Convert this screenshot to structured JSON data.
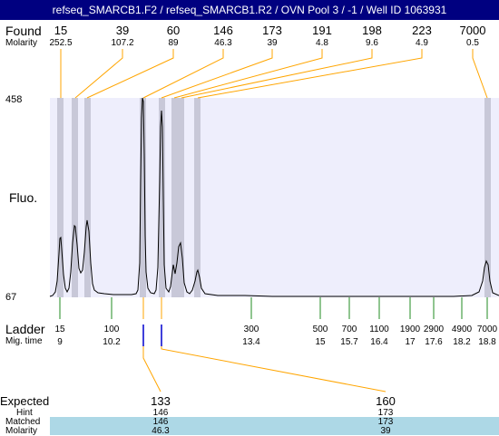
{
  "title": "refseq_SMARCB1.F2 / refseq_SMARCB1.R2 / OVN Pool 3 / -1 / Well ID 1063931",
  "labels": {
    "found": "Found",
    "molarity": "Molarity",
    "fluo": "Fluo.",
    "ladder": "Ladder",
    "mig_time": "Mig. time",
    "expected": "Expected",
    "hint": "Hint",
    "matched": "Matched",
    "molarity2": "Molarity"
  },
  "y_axis": {
    "top": "458",
    "bottom": "67"
  },
  "found_peaks": [
    {
      "found": "15",
      "molarity": "252.5"
    },
    {
      "found": "39",
      "molarity": "107.2"
    },
    {
      "found": "60",
      "molarity": "89"
    },
    {
      "found": "146",
      "molarity": "46.3"
    },
    {
      "found": "173",
      "molarity": "39"
    },
    {
      "found": "191",
      "molarity": "4.8"
    },
    {
      "found": "198",
      "molarity": "9.6"
    },
    {
      "found": "223",
      "molarity": "4.9"
    },
    {
      "found": "7000",
      "molarity": "0.5"
    }
  ],
  "ladder": [
    {
      "size": "15",
      "time": "9"
    },
    {
      "size": "100",
      "time": "10.2"
    },
    {
      "size": "300",
      "time": "13.4"
    },
    {
      "size": "500",
      "time": "15"
    },
    {
      "size": "700",
      "time": "15.7"
    },
    {
      "size": "1100",
      "time": "16.4"
    },
    {
      "size": "1900",
      "time": "17"
    },
    {
      "size": "2900",
      "time": "17.6"
    },
    {
      "size": "4900",
      "time": "18.2"
    },
    {
      "size": "7000",
      "time": "18.8"
    }
  ],
  "expected": [
    {
      "expected": "133",
      "hint": "146",
      "matched": "146",
      "molarity": "46.3"
    },
    {
      "expected": "160",
      "hint": "173",
      "matched": "173",
      "molarity": "39"
    }
  ],
  "colors": {
    "title_bg": "#000080",
    "plot_bg": "#eeeefc",
    "peak_band": "#c8c8d8",
    "found_line": "#ffa500",
    "ladder_tick": "#228b22",
    "expected_marker": "#0000cd",
    "matched_band": "#add8e6"
  }
}
